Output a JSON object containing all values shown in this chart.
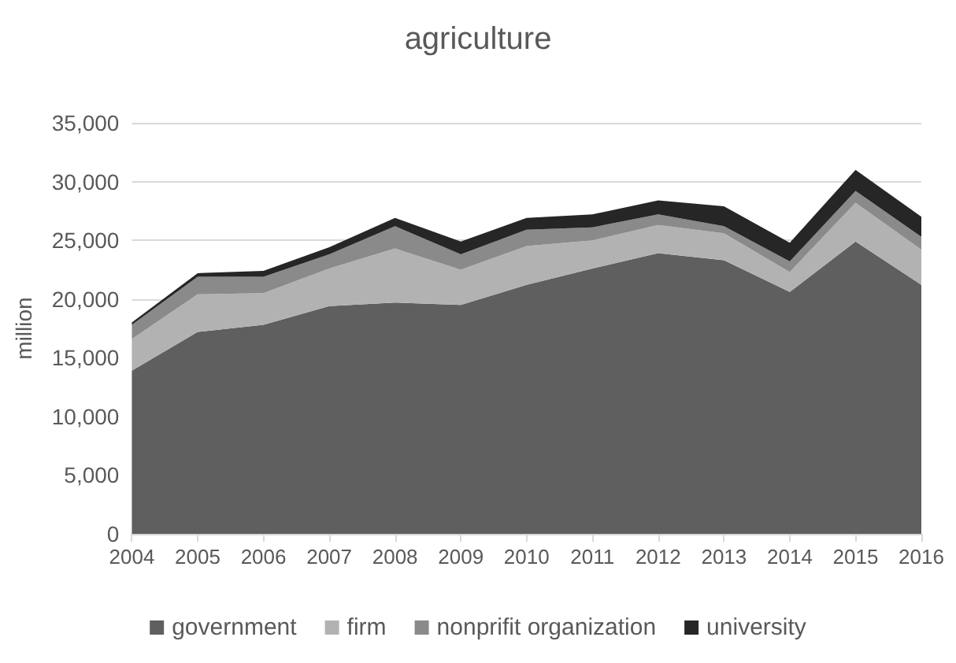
{
  "chart_data": {
    "type": "area",
    "title": "agriculture",
    "ylabel": "million",
    "stacked": true,
    "categories": [
      "2004",
      "2005",
      "2006",
      "2007",
      "2008",
      "2009",
      "2010",
      "2011",
      "2012",
      "2013",
      "2014",
      "2015",
      "2016"
    ],
    "series": [
      {
        "name": "government",
        "color": "#5f5f5f",
        "values": [
          13900,
          17200,
          17800,
          19400,
          19700,
          19500,
          21200,
          22600,
          23900,
          23300,
          20600,
          24900,
          21200
        ]
      },
      {
        "name": "firm",
        "color": "#b2b2b2",
        "values": [
          2700,
          3200,
          2700,
          3200,
          4600,
          3000,
          3300,
          2400,
          2400,
          2300,
          1700,
          3300,
          3000
        ]
      },
      {
        "name": "nonprifit organization",
        "color": "#8a8a8a",
        "values": [
          1200,
          1500,
          1400,
          1200,
          1900,
          1300,
          1400,
          1100,
          900,
          600,
          900,
          1000,
          1100
        ]
      },
      {
        "name": "university",
        "color": "#262626",
        "values": [
          200,
          300,
          500,
          600,
          700,
          1100,
          1000,
          1100,
          1200,
          1700,
          1600,
          1800,
          1700
        ]
      }
    ],
    "ylim": [
      0,
      35000
    ],
    "yticks": [
      0,
      {
        "value": 5000,
        "label": "5,000"
      },
      {
        "value": 10000,
        "label": "10,000"
      },
      {
        "value": 15000,
        "label": "15,000"
      },
      {
        "value": 20000,
        "label": "20,000"
      },
      {
        "value": 25000,
        "label": "25,000"
      },
      {
        "value": 30000,
        "label": "30,000"
      },
      {
        "value": 35000,
        "label": "35,000"
      }
    ],
    "grid": "y",
    "legend": "bottom"
  }
}
